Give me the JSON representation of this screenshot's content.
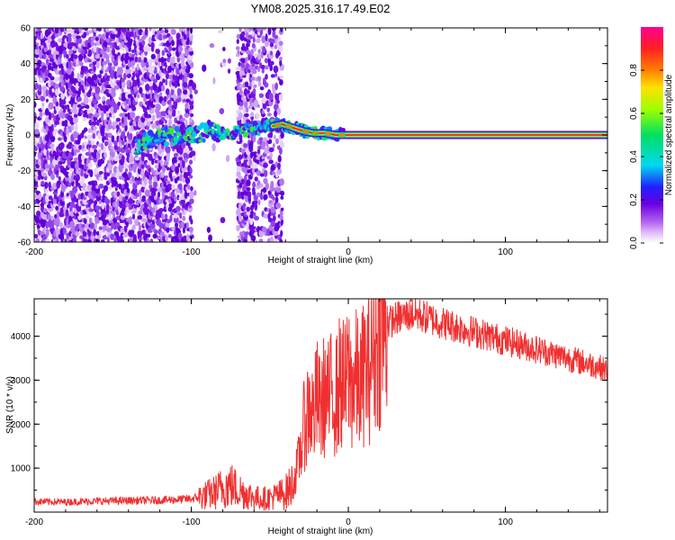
{
  "title": "YM08.2025.316.17.49.E02",
  "chart_data": [
    {
      "type": "heatmap",
      "title": "",
      "xlabel": "Height of straight line (km)",
      "ylabel": "Frequency (Hz)",
      "xlim": [
        -200,
        165
      ],
      "ylim": [
        -60,
        60
      ],
      "xticks": [
        -200,
        -100,
        0,
        100
      ],
      "yticks": [
        60,
        40,
        20,
        0,
        -20,
        -40,
        -60
      ],
      "colorbar": {
        "label": "Normalized spectral amplitude",
        "range": [
          0,
          1
        ],
        "ticks": [
          0.0,
          0.2,
          0.4,
          0.6,
          0.8
        ],
        "colormap": [
          "#ffffff",
          "#e8c8f8",
          "#b060f0",
          "#6a00e0",
          "#2020ff",
          "#00d8f0",
          "#00e060",
          "#a0ff00",
          "#ffe000",
          "#ff8000",
          "#ff2020",
          "#ff0090"
        ]
      },
      "ridge": {
        "x": [
          -135,
          -120,
          -105,
          -95,
          -85,
          -75,
          -65,
          -55,
          -48,
          -42,
          -35,
          -28,
          -22,
          -15,
          -8,
          -3,
          0,
          10,
          165
        ],
        "freq": [
          -6,
          -1,
          0,
          1,
          2,
          1,
          3,
          4,
          5,
          6,
          4,
          2,
          1,
          1,
          0,
          0,
          0,
          0,
          0
        ]
      }
    },
    {
      "type": "line",
      "title": "",
      "xlabel": "Height of straight line (km)",
      "ylabel": "SNR (10 * v/v)",
      "xlim": [
        -200,
        165
      ],
      "ylim": [
        0,
        4850
      ],
      "xticks": [
        -200,
        -100,
        0,
        100
      ],
      "yticks": [
        1000,
        2000,
        3000,
        4000
      ],
      "color": "#f03030",
      "series": [
        {
          "name": "SNR",
          "x": [
            -200,
            -180,
            -160,
            -140,
            -120,
            -100,
            -95,
            -90,
            -85,
            -80,
            -75,
            -70,
            -65,
            -60,
            -55,
            -50,
            -45,
            -40,
            -35,
            -32,
            -30,
            -28,
            -25,
            -22,
            -20,
            -18,
            -15,
            -12,
            -10,
            -8,
            -5,
            -2,
            0,
            2,
            5,
            8,
            10,
            12,
            15,
            18,
            20,
            25,
            30,
            35,
            40,
            45,
            50,
            60,
            70,
            80,
            90,
            100,
            110,
            120,
            130,
            140,
            150,
            160,
            165
          ],
          "values": [
            240,
            230,
            250,
            260,
            270,
            300,
            340,
            390,
            450,
            560,
            620,
            500,
            420,
            330,
            310,
            320,
            380,
            450,
            650,
            1100,
            1500,
            2000,
            2400,
            2200,
            2600,
            2300,
            2700,
            2500,
            2900,
            2600,
            3000,
            2800,
            3200,
            2900,
            3000,
            2800,
            3300,
            3100,
            3600,
            3900,
            4100,
            4300,
            4400,
            4450,
            4500,
            4480,
            4420,
            4300,
            4200,
            4100,
            4000,
            3900,
            3800,
            3700,
            3600,
            3500,
            3400,
            3300,
            3200
          ]
        }
      ]
    }
  ]
}
